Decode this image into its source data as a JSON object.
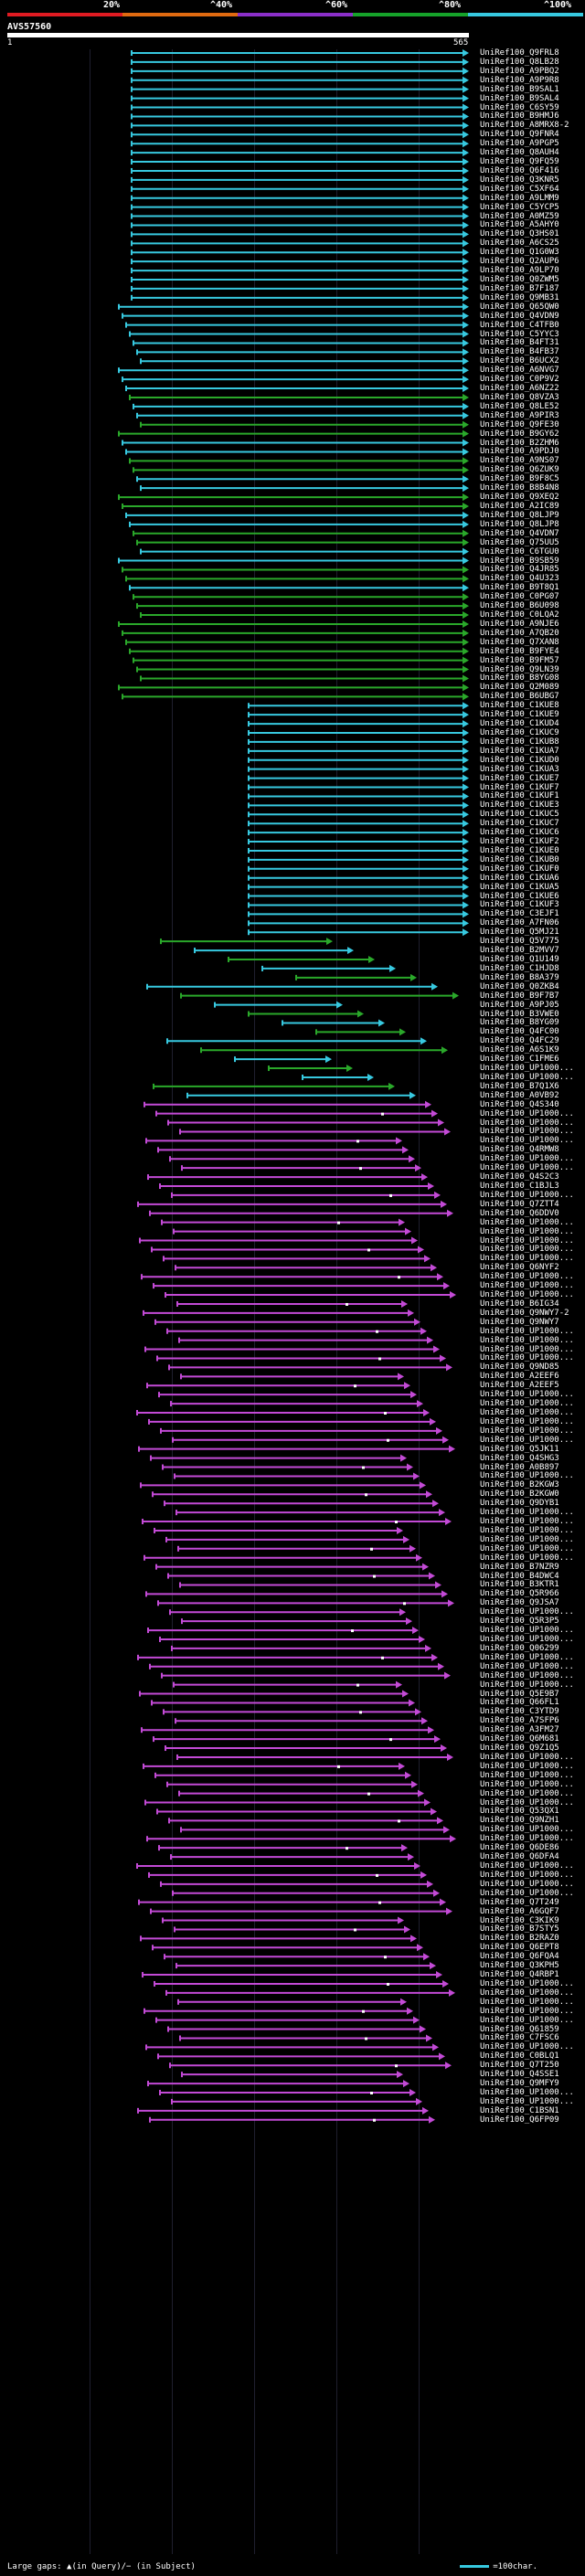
{
  "scale": {
    "marks": [
      "20%",
      "^40%",
      "^60%",
      "^80%",
      "^100%"
    ],
    "colors": [
      "#e01b22",
      "#e06a10",
      "#8b2fc9",
      "#16a32a",
      "#37c9e0"
    ]
  },
  "query": {
    "name": "AVS57560",
    "start": "1",
    "end": "565"
  },
  "colors": {
    "high": "#37c9e0",
    "mid": "#2aa82a",
    "low": "#c34ad6",
    "gap": "#ffffff"
  },
  "hits": [
    "UniRef100_Q9FRL8",
    "UniRef100_Q8LB28",
    "UniRef100_A9PBQ2",
    "UniRef100_A9P9R8",
    "UniRef100_B9SAL1",
    "UniRef100_B9SAL4",
    "UniRef100_C6SY59",
    "UniRef100_B9HMJ6",
    "UniRef100_A8MRX8-2",
    "UniRef100_Q9FNR4",
    "UniRef100_A9PGP5",
    "UniRef100_Q8AUH4",
    "UniRef100_Q9FQ59",
    "UniRef100_Q6F416",
    "UniRef100_Q3KNR5",
    "UniRef100_C5XF64",
    "UniRef100_A9LMM9",
    "UniRef100_C5YCP5",
    "UniRef100_A0MZ59",
    "UniRef100_A5AHY0",
    "UniRef100_Q3HS01",
    "UniRef100_A6CS25",
    "UniRef100_Q1G0W3",
    "UniRef100_Q2AUP6",
    "UniRef100_A9LP70",
    "UniRef100_Q0ZWM5",
    "UniRef100_B7F187",
    "UniRef100_Q9MB31",
    "UniRef100_Q65QW0",
    "UniRef100_Q4VDN9",
    "UniRef100_C4TFB0",
    "UniRef100_C5YYC3",
    "UniRef100_B4FT31",
    "UniRef100_B4FB37",
    "UniRef100_B6UCX2",
    "UniRef100_A6NVG7",
    "UniRef100_C0P9V2",
    "UniRef100_A6NZ22",
    "UniRef100_Q8VZA3",
    "UniRef100_Q8LE52",
    "UniRef100_A9PIR3",
    "UniRef100_Q9FE30",
    "UniRef100_B9GY62",
    "UniRef100_B2ZHM6",
    "UniRef100_A9PDJ0",
    "UniRef100_A9NS07",
    "UniRef100_Q6ZUK9",
    "UniRef100_B9F8C5",
    "UniRef100_B8B4N8",
    "UniRef100_Q9XEQ2",
    "UniRef100_A2IC89",
    "UniRef100_Q8LJP9",
    "UniRef100_Q8LJP8",
    "UniRef100_Q4VDN7",
    "UniRef100_Q75UU5",
    "UniRef100_C6TGU0",
    "UniRef100_B9SB59",
    "UniRef100_Q4JR85",
    "UniRef100_Q4U323",
    "UniRef100_B9T8Q1",
    "UniRef100_C0PG07",
    "UniRef100_B6U098",
    "UniRef100_C0LQA2",
    "UniRef100_A9NJE6",
    "UniRef100_A7QB20",
    "UniRef100_Q7XAN8",
    "UniRef100_B9FYE4",
    "UniRef100_B9FM57",
    "UniRef100_Q9LN39",
    "UniRef100_B8YG08",
    "UniRef100_Q2M089",
    "UniRef100_B6UBG7",
    "UniRef100_C1KUE8",
    "UniRef100_C1KUE9",
    "UniRef100_C1KUD4",
    "UniRef100_C1KUC9",
    "UniRef100_C1KUB8",
    "UniRef100_C1KUA7",
    "UniRef100_C1KUD0",
    "UniRef100_C1KUA3",
    "UniRef100_C1KUE7",
    "UniRef100_C1KUF7",
    "UniRef100_C1KUF1",
    "UniRef100_C1KUE3",
    "UniRef100_C1KUC5",
    "UniRef100_C1KUC7",
    "UniRef100_C1KUC6",
    "UniRef100_C1KUF2",
    "UniRef100_C1KUE0",
    "UniRef100_C1KUB0",
    "UniRef100_C1KUF0",
    "UniRef100_C1KUA6",
    "UniRef100_C1KUA5",
    "UniRef100_C1KUE6",
    "UniRef100_C1KUF3",
    "UniRef100_C3EJF1",
    "UniRef100_A7FN06",
    "UniRef100_Q5MJ21",
    "UniRef100_Q5V775",
    "UniRef100_B2MVV7",
    "UniRef100_Q1U149",
    "UniRef100_C1HJD8",
    "UniRef100_B8A379",
    "UniRef100_Q0ZKB4",
    "UniRef100_B9F7B7",
    "UniRef100_A9PJ05",
    "UniRef100_B3VWE0",
    "UniRef100_B8YG09",
    "UniRef100_Q4FC00",
    "UniRef100_Q4FC29",
    "UniRef100_A6S1K9",
    "UniRef100_C1FME6",
    "UniRef100_UP1000...",
    "UniRef100_UP1000...",
    "UniRef100_B7Q1X6",
    "UniRef100_A0VB92",
    "UniRef100_Q4S340",
    "UniRef100_UP1000...",
    "UniRef100_UP1000...",
    "UniRef100_UP1000...",
    "UniRef100_UP1000...",
    "UniRef100_Q4RMW8",
    "UniRef100_UP1000...",
    "UniRef100_UP1000...",
    "UniRef100_Q4S2C3",
    "UniRef100_C1BJL3",
    "UniRef100_UP1000...",
    "UniRef100_Q7ZTT4",
    "UniRef100_Q6DDV0",
    "UniRef100_UP1000...",
    "UniRef100_UP1000...",
    "UniRef100_UP1000...",
    "UniRef100_UP1000...",
    "UniRef100_UP1000...",
    "UniRef100_Q6NYF2",
    "UniRef100_UP1000...",
    "UniRef100_UP1000...",
    "UniRef100_UP1000...",
    "UniRef100_B6IG34",
    "UniRef100_Q9NWY7-2",
    "UniRef100_Q9NWY7",
    "UniRef100_UP1000...",
    "UniRef100_UP1000...",
    "UniRef100_UP1000...",
    "UniRef100_UP1000...",
    "UniRef100_Q9ND85",
    "UniRef100_A2EEF6",
    "UniRef100_A2EEF5",
    "UniRef100_UP1000...",
    "UniRef100_UP1000...",
    "UniRef100_UP1000...",
    "UniRef100_UP1000...",
    "UniRef100_UP1000...",
    "UniRef100_UP1000...",
    "UniRef100_Q5JK11",
    "UniRef100_Q4SHG3",
    "UniRef100_A0B897",
    "UniRef100_UP1000...",
    "UniRef100_B2KGW3",
    "UniRef100_B2KGW0",
    "UniRef100_Q9DYB1",
    "UniRef100_UP1000...",
    "UniRef100_UP1000...",
    "UniRef100_UP1000...",
    "UniRef100_UP1000...",
    "UniRef100_UP1000...",
    "UniRef100_UP1000...",
    "UniRef100_B7NZR9",
    "UniRef100_B4DWC4",
    "UniRef100_B3KTR1",
    "UniRef100_Q5R966",
    "UniRef100_Q9JSA7",
    "UniRef100_UP1000...",
    "UniRef100_Q5R3P5",
    "UniRef100_UP1000...",
    "UniRef100_UP1000...",
    "UniRef100_Q06299",
    "UniRef100_UP1000...",
    "UniRef100_UP1000...",
    "UniRef100_UP1000...",
    "UniRef100_UP1000...",
    "UniRef100_Q5E9B7",
    "UniRef100_Q66FL1",
    "UniRef100_C3YTD9",
    "UniRef100_A7SFP6",
    "UniRef100_A3FM27",
    "UniRef100_Q6M681",
    "UniRef100_Q9Z1Q5",
    "UniRef100_UP1000...",
    "UniRef100_UP1000...",
    "UniRef100_UP1000...",
    "UniRef100_UP1000...",
    "UniRef100_UP1000...",
    "UniRef100_UP1000...",
    "UniRef100_Q53QX1",
    "UniRef100_Q9NZH1",
    "UniRef100_UP1000...",
    "UniRef100_UP1000...",
    "UniRef100_Q6DE86",
    "UniRef100_Q6DFA4",
    "UniRef100_UP1000...",
    "UniRef100_UP1000...",
    "UniRef100_UP1000...",
    "UniRef100_UP1000...",
    "UniRef100_Q7T249",
    "UniRef100_A6GQF7",
    "UniRef100_C3KIK9",
    "UniRef100_B7STY5",
    "UniRef100_B2RAZ0",
    "UniRef100_Q6EPT8",
    "UniRef100_Q6FQA4",
    "UniRef100_Q3KPH5",
    "UniRef100_Q4RBP1",
    "UniRef100_UP1000...",
    "UniRef100_UP1000...",
    "UniRef100_UP1000...",
    "UniRef100_UP1000...",
    "UniRef100_UP1000...",
    "UniRef100_Q61859",
    "UniRef100_C7FSC6",
    "UniRef100_UP1000...",
    "UniRef100_C0BLQ1",
    "UniRef100_Q7T250",
    "UniRef100_Q4SSE1",
    "UniRef100_Q9MFY9",
    "UniRef100_UP1000...",
    "UniRef100_UP1000...",
    "UniRef100_C1BSN1",
    "UniRef100_Q6FP09"
  ],
  "footer": {
    "left": "Large gaps: ▲(in Query)/− (in Subject)",
    "right": "=100char."
  }
}
